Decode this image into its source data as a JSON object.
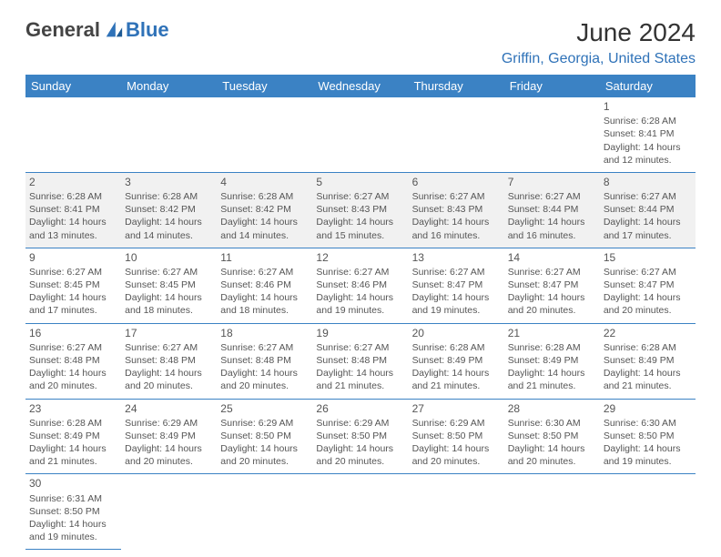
{
  "logo": {
    "text1": "General",
    "text2": "Blue"
  },
  "title": "June 2024",
  "location": "Griffin, Georgia, United States",
  "colors": {
    "header_bg": "#3b82c4",
    "header_fg": "#ffffff",
    "accent": "#2f72b8",
    "cell_border": "#3b82c4",
    "shaded_bg": "#f1f1f1",
    "text": "#555555"
  },
  "weekdays": [
    "Sunday",
    "Monday",
    "Tuesday",
    "Wednesday",
    "Thursday",
    "Friday",
    "Saturday"
  ],
  "weeks": [
    [
      null,
      null,
      null,
      null,
      null,
      null,
      {
        "day": "1",
        "sunrise": "Sunrise: 6:28 AM",
        "sunset": "Sunset: 8:41 PM",
        "daylight": "Daylight: 14 hours and 12 minutes.",
        "shaded": false
      }
    ],
    [
      {
        "day": "2",
        "sunrise": "Sunrise: 6:28 AM",
        "sunset": "Sunset: 8:41 PM",
        "daylight": "Daylight: 14 hours and 13 minutes.",
        "shaded": true
      },
      {
        "day": "3",
        "sunrise": "Sunrise: 6:28 AM",
        "sunset": "Sunset: 8:42 PM",
        "daylight": "Daylight: 14 hours and 14 minutes.",
        "shaded": true
      },
      {
        "day": "4",
        "sunrise": "Sunrise: 6:28 AM",
        "sunset": "Sunset: 8:42 PM",
        "daylight": "Daylight: 14 hours and 14 minutes.",
        "shaded": true
      },
      {
        "day": "5",
        "sunrise": "Sunrise: 6:27 AM",
        "sunset": "Sunset: 8:43 PM",
        "daylight": "Daylight: 14 hours and 15 minutes.",
        "shaded": true
      },
      {
        "day": "6",
        "sunrise": "Sunrise: 6:27 AM",
        "sunset": "Sunset: 8:43 PM",
        "daylight": "Daylight: 14 hours and 16 minutes.",
        "shaded": true
      },
      {
        "day": "7",
        "sunrise": "Sunrise: 6:27 AM",
        "sunset": "Sunset: 8:44 PM",
        "daylight": "Daylight: 14 hours and 16 minutes.",
        "shaded": true
      },
      {
        "day": "8",
        "sunrise": "Sunrise: 6:27 AM",
        "sunset": "Sunset: 8:44 PM",
        "daylight": "Daylight: 14 hours and 17 minutes.",
        "shaded": true
      }
    ],
    [
      {
        "day": "9",
        "sunrise": "Sunrise: 6:27 AM",
        "sunset": "Sunset: 8:45 PM",
        "daylight": "Daylight: 14 hours and 17 minutes.",
        "shaded": false
      },
      {
        "day": "10",
        "sunrise": "Sunrise: 6:27 AM",
        "sunset": "Sunset: 8:45 PM",
        "daylight": "Daylight: 14 hours and 18 minutes.",
        "shaded": false
      },
      {
        "day": "11",
        "sunrise": "Sunrise: 6:27 AM",
        "sunset": "Sunset: 8:46 PM",
        "daylight": "Daylight: 14 hours and 18 minutes.",
        "shaded": false
      },
      {
        "day": "12",
        "sunrise": "Sunrise: 6:27 AM",
        "sunset": "Sunset: 8:46 PM",
        "daylight": "Daylight: 14 hours and 19 minutes.",
        "shaded": false
      },
      {
        "day": "13",
        "sunrise": "Sunrise: 6:27 AM",
        "sunset": "Sunset: 8:47 PM",
        "daylight": "Daylight: 14 hours and 19 minutes.",
        "shaded": false
      },
      {
        "day": "14",
        "sunrise": "Sunrise: 6:27 AM",
        "sunset": "Sunset: 8:47 PM",
        "daylight": "Daylight: 14 hours and 20 minutes.",
        "shaded": false
      },
      {
        "day": "15",
        "sunrise": "Sunrise: 6:27 AM",
        "sunset": "Sunset: 8:47 PM",
        "daylight": "Daylight: 14 hours and 20 minutes.",
        "shaded": false
      }
    ],
    [
      {
        "day": "16",
        "sunrise": "Sunrise: 6:27 AM",
        "sunset": "Sunset: 8:48 PM",
        "daylight": "Daylight: 14 hours and 20 minutes.",
        "shaded": false
      },
      {
        "day": "17",
        "sunrise": "Sunrise: 6:27 AM",
        "sunset": "Sunset: 8:48 PM",
        "daylight": "Daylight: 14 hours and 20 minutes.",
        "shaded": false
      },
      {
        "day": "18",
        "sunrise": "Sunrise: 6:27 AM",
        "sunset": "Sunset: 8:48 PM",
        "daylight": "Daylight: 14 hours and 20 minutes.",
        "shaded": false
      },
      {
        "day": "19",
        "sunrise": "Sunrise: 6:27 AM",
        "sunset": "Sunset: 8:48 PM",
        "daylight": "Daylight: 14 hours and 21 minutes.",
        "shaded": false
      },
      {
        "day": "20",
        "sunrise": "Sunrise: 6:28 AM",
        "sunset": "Sunset: 8:49 PM",
        "daylight": "Daylight: 14 hours and 21 minutes.",
        "shaded": false
      },
      {
        "day": "21",
        "sunrise": "Sunrise: 6:28 AM",
        "sunset": "Sunset: 8:49 PM",
        "daylight": "Daylight: 14 hours and 21 minutes.",
        "shaded": false
      },
      {
        "day": "22",
        "sunrise": "Sunrise: 6:28 AM",
        "sunset": "Sunset: 8:49 PM",
        "daylight": "Daylight: 14 hours and 21 minutes.",
        "shaded": false
      }
    ],
    [
      {
        "day": "23",
        "sunrise": "Sunrise: 6:28 AM",
        "sunset": "Sunset: 8:49 PM",
        "daylight": "Daylight: 14 hours and 21 minutes.",
        "shaded": false
      },
      {
        "day": "24",
        "sunrise": "Sunrise: 6:29 AM",
        "sunset": "Sunset: 8:49 PM",
        "daylight": "Daylight: 14 hours and 20 minutes.",
        "shaded": false
      },
      {
        "day": "25",
        "sunrise": "Sunrise: 6:29 AM",
        "sunset": "Sunset: 8:50 PM",
        "daylight": "Daylight: 14 hours and 20 minutes.",
        "shaded": false
      },
      {
        "day": "26",
        "sunrise": "Sunrise: 6:29 AM",
        "sunset": "Sunset: 8:50 PM",
        "daylight": "Daylight: 14 hours and 20 minutes.",
        "shaded": false
      },
      {
        "day": "27",
        "sunrise": "Sunrise: 6:29 AM",
        "sunset": "Sunset: 8:50 PM",
        "daylight": "Daylight: 14 hours and 20 minutes.",
        "shaded": false
      },
      {
        "day": "28",
        "sunrise": "Sunrise: 6:30 AM",
        "sunset": "Sunset: 8:50 PM",
        "daylight": "Daylight: 14 hours and 20 minutes.",
        "shaded": false
      },
      {
        "day": "29",
        "sunrise": "Sunrise: 6:30 AM",
        "sunset": "Sunset: 8:50 PM",
        "daylight": "Daylight: 14 hours and 19 minutes.",
        "shaded": false
      }
    ],
    [
      {
        "day": "30",
        "sunrise": "Sunrise: 6:31 AM",
        "sunset": "Sunset: 8:50 PM",
        "daylight": "Daylight: 14 hours and 19 minutes.",
        "shaded": false
      },
      null,
      null,
      null,
      null,
      null,
      null
    ]
  ]
}
